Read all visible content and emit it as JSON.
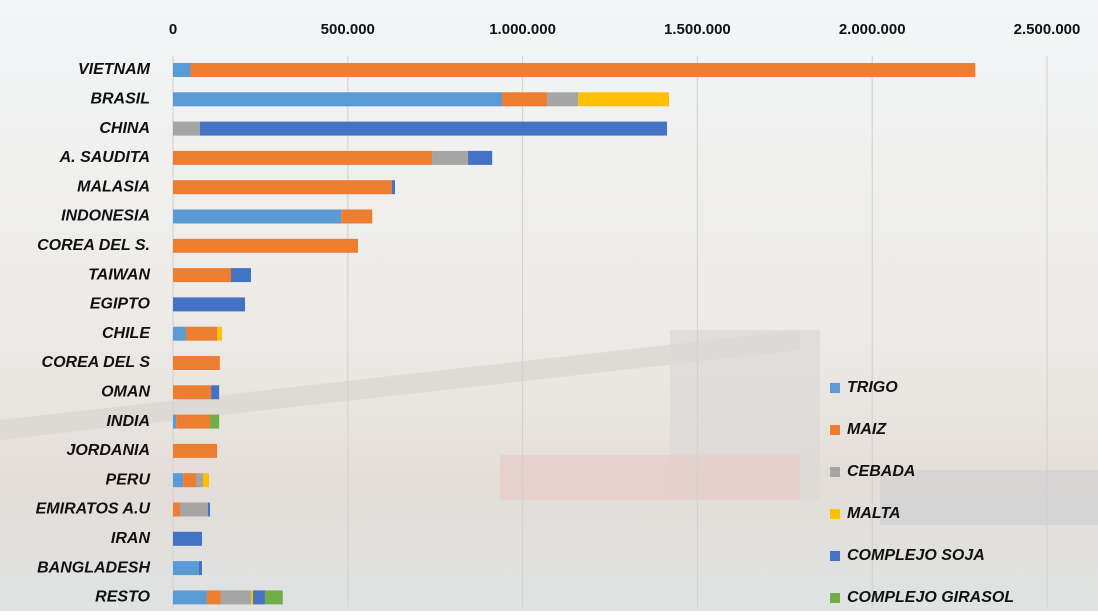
{
  "chart_data": {
    "type": "stacked-bar-horizontal",
    "categories": [
      "VIETNAM",
      "BRASIL",
      "CHINA",
      "A. SAUDITA",
      "MALASIA",
      "INDONESIA",
      "COREA DEL S.",
      "TAIWAN",
      "EGIPTO",
      "CHILE",
      "COREA DEL S",
      "OMAN",
      "INDIA",
      "JORDANIA",
      "PERU",
      "EMIRATOS A.U",
      "IRAN",
      "BANGLADESH",
      "RESTO"
    ],
    "series": [
      {
        "name": "TRIGO",
        "color": "#5b9bd5",
        "values": [
          50000,
          941000,
          0,
          0,
          0,
          481000,
          0,
          0,
          0,
          37000,
          0,
          0,
          9000,
          0,
          29000,
          0,
          0,
          74000,
          97000
        ]
      },
      {
        "name": "MAIZ",
        "color": "#ed7d31",
        "values": [
          2245000,
          129000,
          0,
          741000,
          626000,
          89000,
          529000,
          166000,
          0,
          89000,
          134000,
          109000,
          97000,
          126000,
          37000,
          20000,
          0,
          0,
          40000
        ]
      },
      {
        "name": "CEBADA",
        "color": "#a5a5a5",
        "values": [
          0,
          89000,
          77000,
          103000,
          0,
          0,
          0,
          0,
          0,
          0,
          0,
          0,
          0,
          0,
          20000,
          80000,
          0,
          0,
          86000
        ]
      },
      {
        "name": "MALTA",
        "color": "#ffc000",
        "values": [
          0,
          260000,
          0,
          0,
          0,
          0,
          0,
          0,
          0,
          14000,
          0,
          0,
          0,
          0,
          17000,
          0,
          0,
          0,
          6000
        ]
      },
      {
        "name": "COMPLEJO SOJA",
        "color": "#4472c4",
        "values": [
          0,
          0,
          1336000,
          69000,
          9000,
          0,
          0,
          57000,
          206000,
          0,
          0,
          23000,
          0,
          0,
          0,
          6000,
          83000,
          9000,
          34000
        ]
      },
      {
        "name": "COMPLEJO GIRASOL",
        "color": "#70ad47",
        "values": [
          0,
          0,
          0,
          0,
          0,
          0,
          0,
          0,
          0,
          0,
          0,
          0,
          26000,
          0,
          0,
          0,
          0,
          0,
          51000
        ]
      }
    ],
    "xlim": [
      0,
      2500000
    ],
    "xticks": [
      0,
      {
        "value": 500000,
        "label": "500.000"
      },
      {
        "value": 1000000,
        "label": "1.000.000"
      },
      {
        "value": 1500000,
        "label": "1.500.000"
      },
      {
        "value": 2000000,
        "label": "2.000.000"
      },
      {
        "value": 2500000,
        "label": "2.500.000"
      }
    ],
    "grid": true
  }
}
